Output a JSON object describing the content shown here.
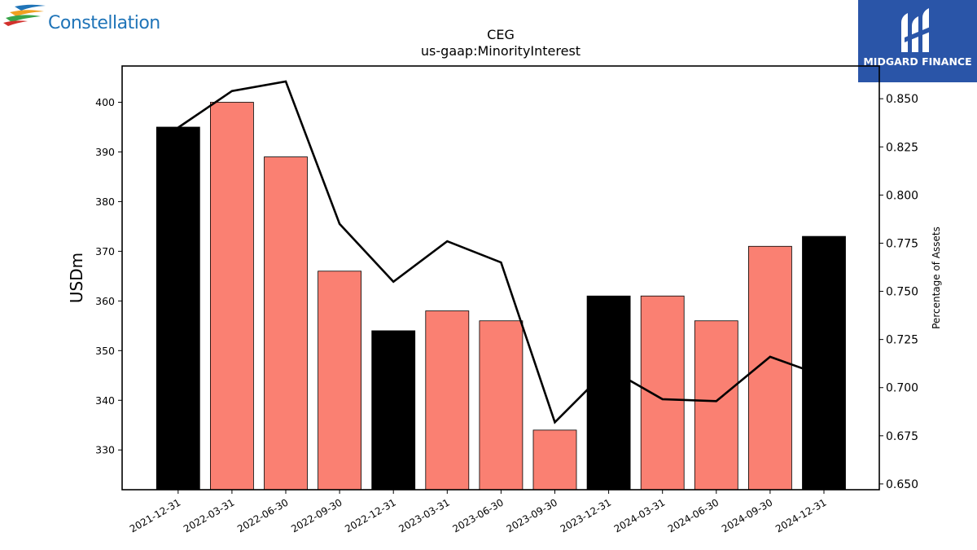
{
  "logos": {
    "left": {
      "text": "Constellation",
      "icon": "constellation-swoosh-icon"
    },
    "right": {
      "text": "MIDGARD FINANCE",
      "icon": "midgard-mark-icon",
      "background": "#2a55a8"
    }
  },
  "chart_data": {
    "type": "bar",
    "title": "CEG",
    "subtitle": "us-gaap:MinorityInterest",
    "xlabel": "",
    "ylabel": "USDm",
    "y2label": "Percentage of Assets",
    "categories": [
      "2021-12-31",
      "2022-03-31",
      "2022-06-30",
      "2022-09-30",
      "2022-12-31",
      "2023-03-31",
      "2023-06-30",
      "2023-09-30",
      "2023-12-31",
      "2024-03-31",
      "2024-06-30",
      "2024-09-30",
      "2024-12-31"
    ],
    "values": [
      395,
      400,
      389,
      366,
      354,
      358,
      356,
      334,
      361,
      361,
      356,
      371,
      373
    ],
    "bar_colors": [
      "#000000",
      "#fa8072",
      "#fa8072",
      "#fa8072",
      "#000000",
      "#fa8072",
      "#fa8072",
      "#fa8072",
      "#000000",
      "#fa8072",
      "#fa8072",
      "#fa8072",
      "#000000"
    ],
    "line": {
      "name": "",
      "color": "#000000",
      "values": [
        0.835,
        0.854,
        0.859,
        0.785,
        0.755,
        0.776,
        0.765,
        0.682,
        0.71,
        0.694,
        0.693,
        0.716,
        0.706
      ]
    },
    "ylim": [
      322,
      407.3
    ],
    "yticks": [
      330,
      340,
      350,
      360,
      370,
      380,
      390,
      400
    ],
    "y2lim": [
      0.647,
      0.867
    ],
    "y2ticks": [
      "0.650",
      "0.675",
      "0.700",
      "0.725",
      "0.750",
      "0.775",
      "0.800",
      "0.825",
      "0.850"
    ],
    "grid": false,
    "legend": "none"
  }
}
